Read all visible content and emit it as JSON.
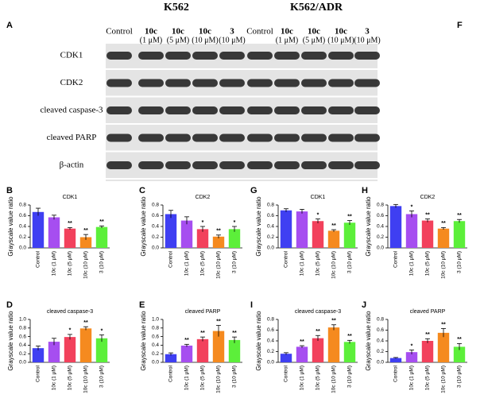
{
  "blot": {
    "panel_a": "A",
    "panel_f": "F",
    "title_left": "K562",
    "title_right": "K562/ADR",
    "lanes_left": [
      {
        "name": "Control"
      },
      {
        "name": "10c",
        "dose": "(1 μM)"
      },
      {
        "name": "10c",
        "dose": "(5 μM)"
      },
      {
        "name": "10c",
        "dose": "(10 μM)"
      },
      {
        "name": "3",
        "dose": "(10 μM)"
      }
    ],
    "lanes_right": [
      {
        "name": "Control"
      },
      {
        "name": "10c",
        "dose": "(1 μM)"
      },
      {
        "name": "10c",
        "dose": "(5 μM)"
      },
      {
        "name": "10c",
        "dose": "(10 μM)"
      },
      {
        "name": "3",
        "dose": "(10 μM)"
      }
    ],
    "rows": [
      "CDK1",
      "CDK2",
      "cleaved caspase-3",
      "cleaved PARP",
      "β-actin"
    ]
  },
  "chart_data": [
    {
      "type": "bar",
      "panel": "B",
      "title": "CDK1",
      "ylabel": "Grayscale value ratio",
      "categories": [
        "Control",
        "10c (1 μM)",
        "10c (5 μM)",
        "10c (10 μM)",
        "3 (10 μM)"
      ],
      "values": [
        0.67,
        0.57,
        0.36,
        0.2,
        0.39
      ],
      "errors": [
        0.07,
        0.04,
        0.02,
        0.05,
        0.02
      ],
      "annotations": [
        null,
        null,
        "**",
        "**",
        "**"
      ],
      "colors": [
        "#3f3ff2",
        "#a64ef0",
        "#f2415c",
        "#f58a1f",
        "#5cef3a"
      ],
      "ylim": [
        0,
        0.8
      ],
      "yticks": [
        {
          "value": 0,
          "label": "0.0"
        },
        0.2,
        0.4,
        0.6,
        0.8
      ]
    },
    {
      "type": "bar",
      "panel": "C",
      "title": "CDK2",
      "ylabel": "Grayscale value ratio",
      "categories": [
        "Control",
        "10c (1 μM)",
        "10c (5 μM)",
        "10c (10 μM)",
        "3 (10 μM)"
      ],
      "values": [
        0.63,
        0.51,
        0.35,
        0.21,
        0.35
      ],
      "errors": [
        0.07,
        0.07,
        0.05,
        0.03,
        0.05
      ],
      "annotations": [
        null,
        null,
        "*",
        "**",
        "*"
      ],
      "colors": [
        "#3f3ff2",
        "#a64ef0",
        "#f2415c",
        "#f58a1f",
        "#5cef3a"
      ],
      "ylim": [
        0,
        0.8
      ],
      "yticks": [
        {
          "value": 0,
          "label": "0.0"
        },
        0.2,
        0.4,
        0.6,
        0.8
      ]
    },
    {
      "type": "bar",
      "panel": "G",
      "title": "CDK1",
      "ylabel": "Grayscale value ratio",
      "categories": [
        "Control",
        "10c (1 μM)",
        "10c (5 μM)",
        "10c (10 μM)",
        "3 (10 μM)"
      ],
      "values": [
        0.7,
        0.68,
        0.5,
        0.32,
        0.47
      ],
      "errors": [
        0.03,
        0.04,
        0.04,
        0.02,
        0.04
      ],
      "annotations": [
        null,
        null,
        "*",
        "**",
        "**"
      ],
      "colors": [
        "#3f3ff2",
        "#a64ef0",
        "#f2415c",
        "#f58a1f",
        "#5cef3a"
      ],
      "ylim": [
        0,
        0.8
      ],
      "yticks": [
        {
          "value": 0,
          "label": "0.0"
        },
        0.2,
        0.4,
        0.6,
        0.8
      ]
    },
    {
      "type": "bar",
      "panel": "H",
      "title": "CDK2",
      "ylabel": "Grayscale value ratio",
      "categories": [
        "Control",
        "10c (1 μM)",
        "10c (5 μM)",
        "10c (10 μM)",
        "3 (10 μM)"
      ],
      "values": [
        0.78,
        0.63,
        0.51,
        0.36,
        0.5
      ],
      "errors": [
        0.03,
        0.06,
        0.03,
        0.02,
        0.03
      ],
      "annotations": [
        null,
        "*",
        "**",
        "**",
        "**"
      ],
      "colors": [
        "#3f3ff2",
        "#a64ef0",
        "#f2415c",
        "#f58a1f",
        "#5cef3a"
      ],
      "ylim": [
        0,
        0.8
      ],
      "yticks": [
        {
          "value": 0,
          "label": "0.0"
        },
        0.2,
        0.4,
        0.6,
        0.8
      ]
    },
    {
      "type": "bar",
      "panel": "D",
      "title": "cleaved caspase-3",
      "ylabel": "Grayscale value ratio",
      "categories": [
        "Control",
        "10c (1 μM)",
        "10c (5 μM)",
        "10c (10 μM)",
        "3 (10 μM)"
      ],
      "values": [
        0.33,
        0.48,
        0.59,
        0.79,
        0.56
      ],
      "errors": [
        0.05,
        0.08,
        0.06,
        0.04,
        0.08
      ],
      "annotations": [
        null,
        null,
        "*",
        "**",
        "*"
      ],
      "colors": [
        "#3f3ff2",
        "#a64ef0",
        "#f2415c",
        "#f58a1f",
        "#5cef3a"
      ],
      "ylim": [
        0,
        1
      ],
      "yticks": [
        {
          "value": 0,
          "label": "0.0"
        },
        0.2,
        0.4,
        0.6,
        0.8,
        {
          "value": 1,
          "label": "1.0"
        }
      ]
    },
    {
      "type": "bar",
      "panel": "E",
      "title": "cleaved PARP",
      "ylabel": "Grayscale value ratio",
      "categories": [
        "Control",
        "10c (1 μM)",
        "10c (5 μM)",
        "10c (10 μM)",
        "3 (10 μM)"
      ],
      "values": [
        0.19,
        0.39,
        0.54,
        0.73,
        0.52
      ],
      "errors": [
        0.03,
        0.03,
        0.05,
        0.13,
        0.07
      ],
      "annotations": [
        null,
        "**",
        "**",
        "**",
        "**"
      ],
      "colors": [
        "#3f3ff2",
        "#a64ef0",
        "#f2415c",
        "#f58a1f",
        "#5cef3a"
      ],
      "ylim": [
        0,
        1
      ],
      "yticks": [
        {
          "value": 0,
          "label": "0.0"
        },
        0.2,
        0.4,
        0.6,
        0.8,
        {
          "value": 1,
          "label": "1.0"
        }
      ]
    },
    {
      "type": "bar",
      "panel": "I",
      "title": "cleaved caspase-3",
      "ylabel": "Grayscale value ratio",
      "categories": [
        "Control",
        "10c (1 μM)",
        "10c (5 μM)",
        "10c (10 μM)",
        "3 (10 μM)"
      ],
      "values": [
        0.16,
        0.29,
        0.45,
        0.65,
        0.38
      ],
      "errors": [
        0.02,
        0.02,
        0.05,
        0.05,
        0.03
      ],
      "annotations": [
        null,
        "**",
        "**",
        "**",
        "**"
      ],
      "colors": [
        "#3f3ff2",
        "#a64ef0",
        "#f2415c",
        "#f58a1f",
        "#5cef3a"
      ],
      "ylim": [
        0,
        0.8
      ],
      "yticks": [
        {
          "value": 0,
          "label": "0.0"
        },
        0.2,
        0.4,
        0.6,
        0.8
      ]
    },
    {
      "type": "bar",
      "panel": "J",
      "title": "cleaved PARP",
      "ylabel": "Grayscale value ratio",
      "categories": [
        "Control",
        "10c (1 μM)",
        "10c (5 μM)",
        "10c (10 μM)",
        "3 (10 μM)"
      ],
      "values": [
        0.08,
        0.19,
        0.4,
        0.55,
        0.29
      ],
      "errors": [
        0.01,
        0.04,
        0.04,
        0.08,
        0.06
      ],
      "annotations": [
        null,
        "*",
        "**",
        "**",
        "**"
      ],
      "colors": [
        "#3f3ff2",
        "#a64ef0",
        "#f2415c",
        "#f58a1f",
        "#5cef3a"
      ],
      "ylim": [
        0,
        0.8
      ],
      "yticks": [
        {
          "value": 0,
          "label": "0.0"
        },
        0.2,
        0.4,
        0.6,
        0.8
      ]
    }
  ]
}
